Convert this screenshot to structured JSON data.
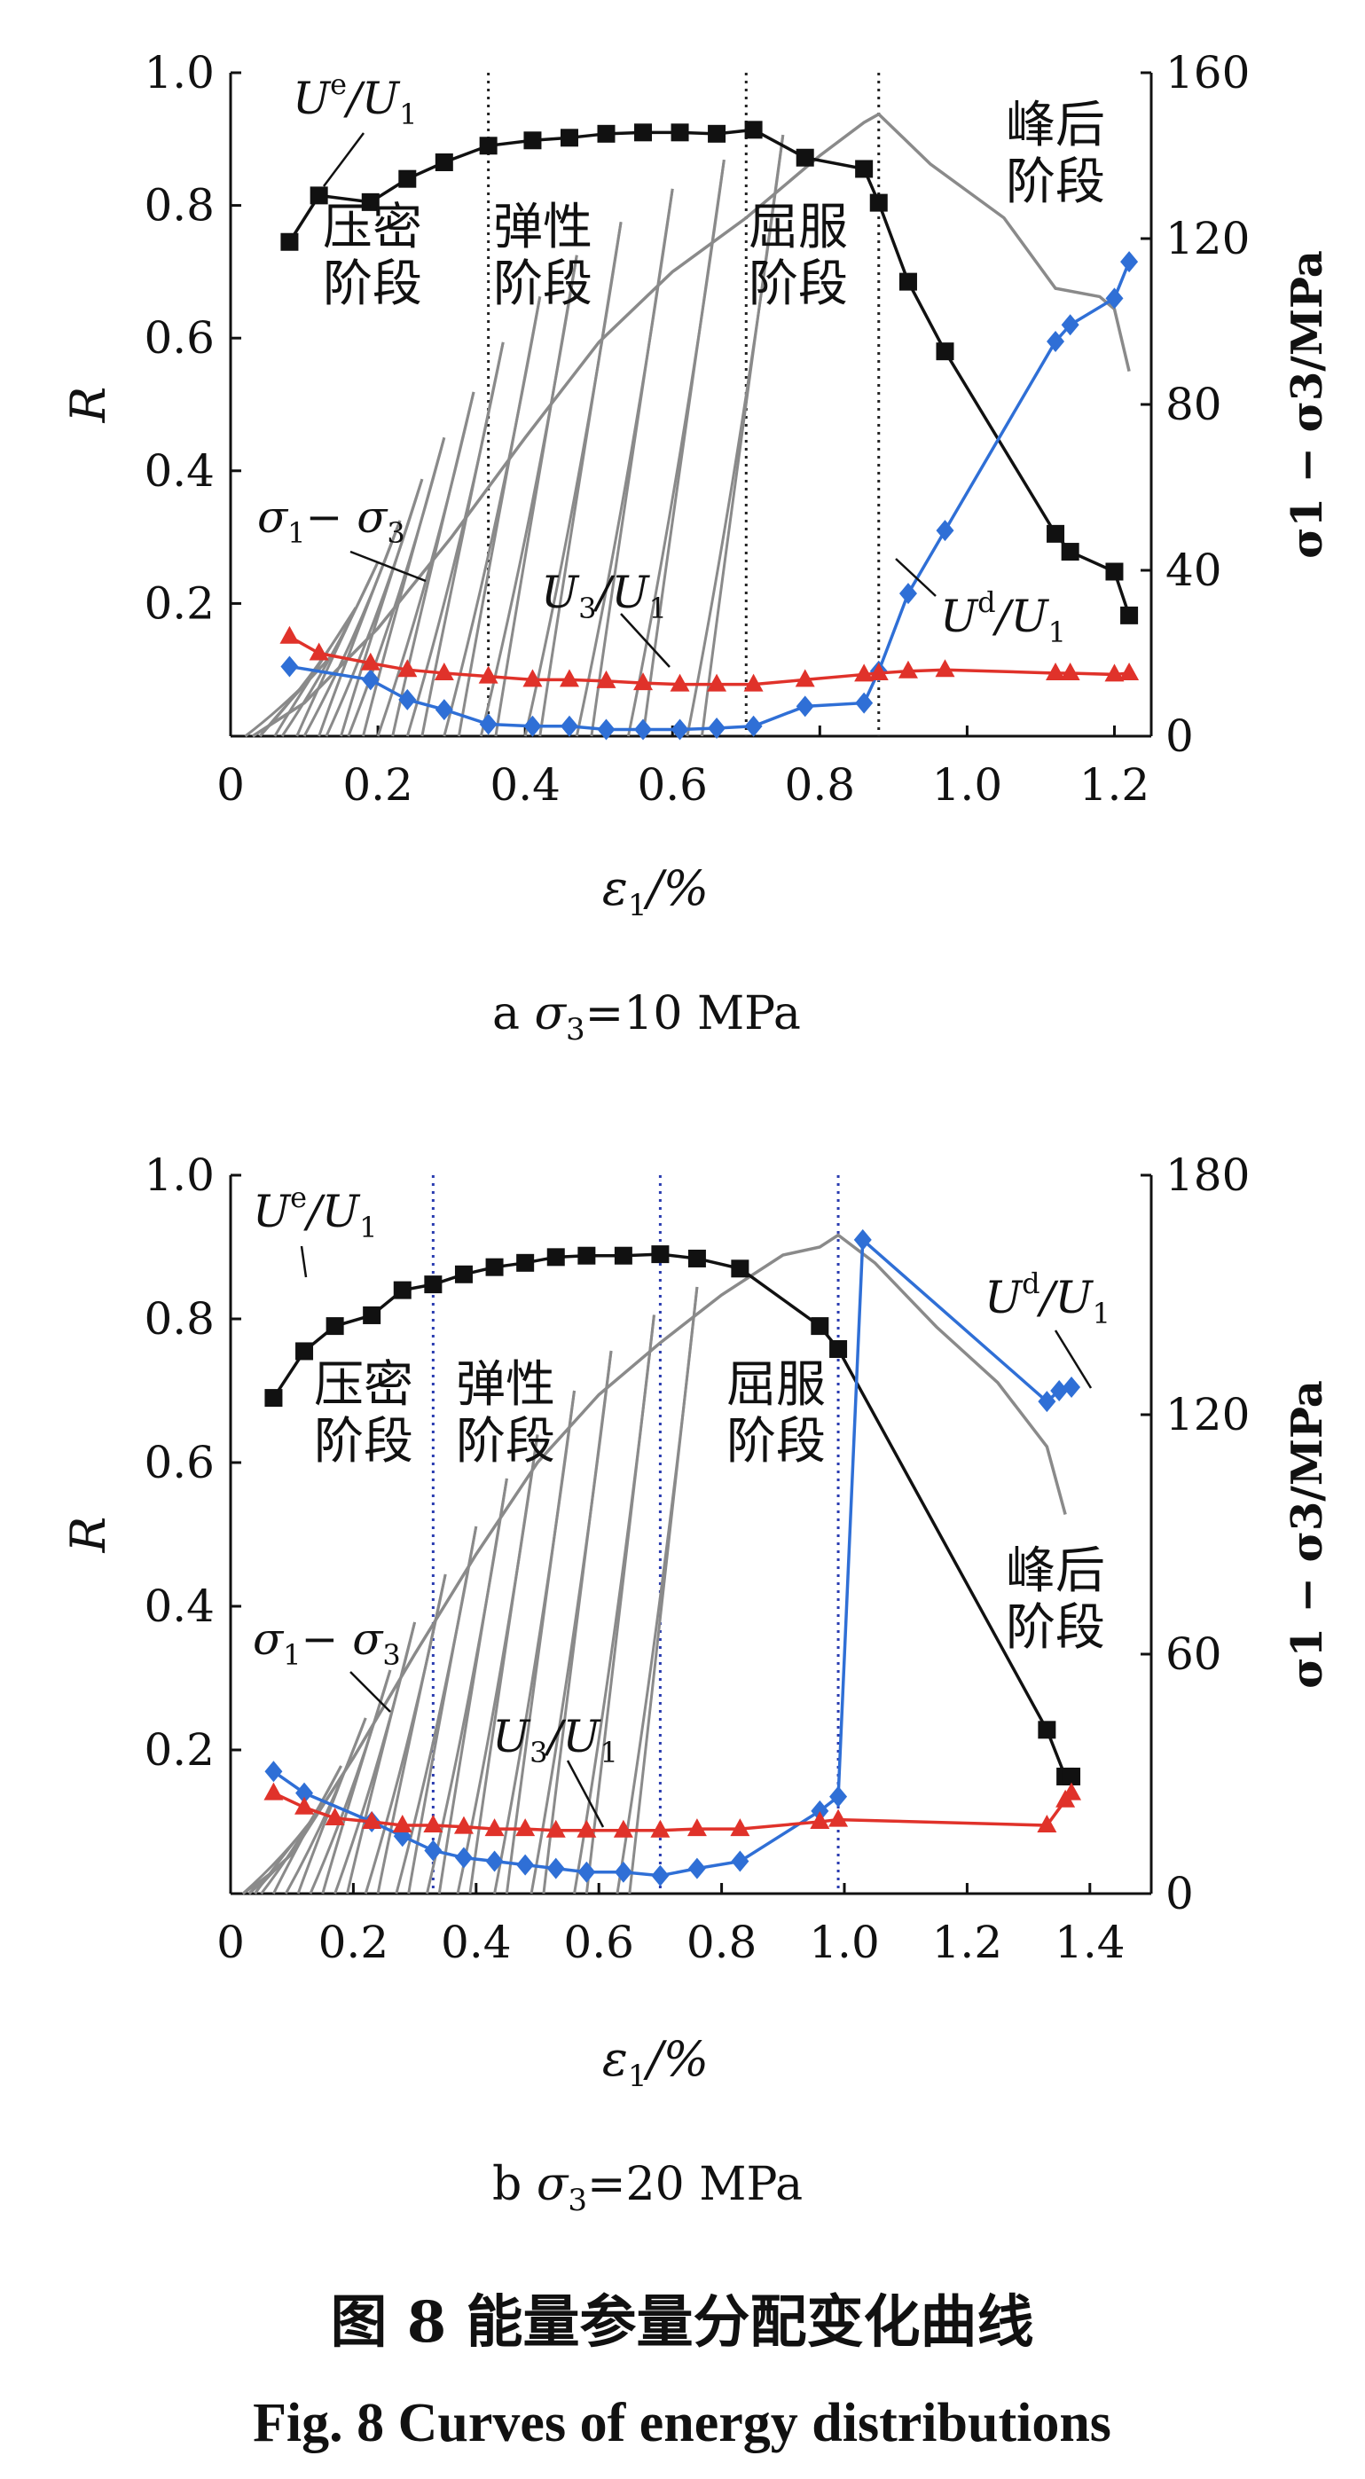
{
  "figure": {
    "caption_cn": "图 8   能量参量分配变化曲线",
    "caption_en": "Fig. 8   Curves of energy distributions"
  },
  "colors": {
    "ue": "#111111",
    "ud": "#2f6fd6",
    "u3": "#e0322a",
    "stress": "#8a8a8a",
    "divider_a": "#222222",
    "divider_b": "#2a3cb0"
  },
  "chart_data": [
    {
      "type": "line",
      "panel_label": "a",
      "caption_main": "σ",
      "caption_sub": "3",
      "caption_tail": "=10 MPa",
      "xlabel_main": "ε",
      "xlabel_sub": "1",
      "xlabel_tail": "/%",
      "ylabel": "R",
      "y2label": "σ1 − σ3/MPa",
      "xlim": [
        0,
        1.25
      ],
      "ylim": [
        0,
        1.0
      ],
      "y2lim": [
        0,
        160
      ],
      "xticks": [
        "0",
        "0.2",
        "0.4",
        "0.6",
        "0.8",
        "1.0",
        "1.2"
      ],
      "yticks": [
        "0.2",
        "0.4",
        "0.6",
        "0.8",
        "1.0"
      ],
      "y2ticks": [
        "0",
        "40",
        "80",
        "120",
        "160"
      ],
      "stage_boundaries": [
        0.35,
        0.7,
        0.88
      ],
      "stages": [
        {
          "lines": [
            "压密",
            "阶段"
          ]
        },
        {
          "lines": [
            "弹性",
            "阶段"
          ]
        },
        {
          "lines": [
            "屈服",
            "阶段"
          ]
        },
        {
          "lines": [
            "峰后",
            "阶段"
          ]
        }
      ],
      "annotations": {
        "ue": {
          "main": "U",
          "sup": "e",
          "tail": "/U",
          "sub": "1"
        },
        "ud": {
          "main": "U",
          "sup": "d",
          "tail": "/U",
          "sub": "1"
        },
        "u3": {
          "main": "U",
          "sub0": "3",
          "tail": "/U",
          "sub": "1"
        },
        "stress": {
          "a": "σ",
          "asub": "1",
          "mid": "− σ",
          "bsub": "3"
        }
      },
      "series": [
        {
          "name": "Ue/U1",
          "marker": "square",
          "x": [
            0.08,
            0.12,
            0.19,
            0.24,
            0.29,
            0.35,
            0.41,
            0.46,
            0.51,
            0.56,
            0.61,
            0.66,
            0.71,
            0.78,
            0.86,
            0.88,
            0.92,
            0.97,
            1.12,
            1.14,
            1.2,
            1.22
          ],
          "y": [
            0.745,
            0.815,
            0.805,
            0.84,
            0.865,
            0.89,
            0.898,
            0.902,
            0.908,
            0.91,
            0.91,
            0.908,
            0.914,
            0.872,
            0.855,
            0.804,
            0.685,
            0.58,
            0.305,
            0.278,
            0.248,
            0.182
          ]
        },
        {
          "name": "Ud/U1",
          "marker": "diamond",
          "x": [
            0.08,
            0.19,
            0.24,
            0.29,
            0.35,
            0.41,
            0.46,
            0.51,
            0.56,
            0.61,
            0.66,
            0.71,
            0.78,
            0.86,
            0.88,
            0.92,
            0.97,
            1.12,
            1.14,
            1.2,
            1.22
          ],
          "y": [
            0.105,
            0.085,
            0.055,
            0.04,
            0.018,
            0.015,
            0.015,
            0.01,
            0.01,
            0.01,
            0.012,
            0.015,
            0.045,
            0.05,
            0.098,
            0.215,
            0.31,
            0.595,
            0.62,
            0.66,
            0.715
          ]
        },
        {
          "name": "U3/U1",
          "marker": "triangle",
          "x": [
            0.08,
            0.12,
            0.19,
            0.24,
            0.29,
            0.35,
            0.41,
            0.46,
            0.51,
            0.56,
            0.61,
            0.66,
            0.71,
            0.78,
            0.86,
            0.88,
            0.92,
            0.97,
            1.12,
            1.14,
            1.2,
            1.22
          ],
          "y": [
            0.15,
            0.125,
            0.11,
            0.1,
            0.095,
            0.09,
            0.085,
            0.085,
            0.083,
            0.08,
            0.078,
            0.078,
            0.078,
            0.085,
            0.093,
            0.095,
            0.098,
            0.1,
            0.095,
            0.095,
            0.093,
            0.095
          ]
        }
      ],
      "stress_curve": {
        "peak": [
          0.88,
          150
        ],
        "cycles": [
          [
            0.14,
            20
          ],
          [
            0.17,
            31
          ],
          [
            0.2,
            42
          ],
          [
            0.23,
            52
          ],
          [
            0.26,
            62
          ],
          [
            0.29,
            72
          ],
          [
            0.33,
            83
          ],
          [
            0.37,
            95
          ],
          [
            0.42,
            106
          ],
          [
            0.47,
            116
          ],
          [
            0.53,
            124
          ],
          [
            0.6,
            132
          ],
          [
            0.67,
            139
          ],
          [
            0.75,
            145
          ]
        ],
        "envelope": [
          [
            0.03,
            0
          ],
          [
            0.1,
            8
          ],
          [
            0.2,
            26
          ],
          [
            0.3,
            48
          ],
          [
            0.4,
            72
          ],
          [
            0.5,
            95
          ],
          [
            0.6,
            112
          ],
          [
            0.7,
            125
          ],
          [
            0.8,
            140
          ],
          [
            0.86,
            148
          ],
          [
            0.88,
            150
          ],
          [
            0.95,
            138
          ],
          [
            1.05,
            125
          ],
          [
            1.12,
            108
          ],
          [
            1.18,
            106
          ],
          [
            1.2,
            103
          ],
          [
            1.22,
            88
          ]
        ]
      }
    },
    {
      "type": "line",
      "panel_label": "b",
      "caption_main": "σ",
      "caption_sub": "3",
      "caption_tail": "=20 MPa",
      "xlabel_main": "ε",
      "xlabel_sub": "1",
      "xlabel_tail": "/%",
      "ylabel": "R",
      "y2label": "σ1 − σ3/MPa",
      "xlim": [
        0,
        1.5
      ],
      "ylim": [
        0,
        1.0
      ],
      "y2lim": [
        0,
        180
      ],
      "xticks": [
        "0",
        "0.2",
        "0.4",
        "0.6",
        "0.8",
        "1.0",
        "1.2",
        "1.4"
      ],
      "yticks": [
        "0.2",
        "0.4",
        "0.6",
        "0.8",
        "1.0"
      ],
      "y2ticks": [
        "0",
        "60",
        "120",
        "180"
      ],
      "stage_boundaries": [
        0.33,
        0.7,
        0.99
      ],
      "stages": [
        {
          "lines": [
            "压密",
            "阶段"
          ]
        },
        {
          "lines": [
            "弹性",
            "阶段"
          ]
        },
        {
          "lines": [
            "屈服",
            "阶段"
          ]
        },
        {
          "lines": [
            "峰后",
            "阶段"
          ]
        }
      ],
      "annotations": {
        "ue": {
          "main": "U",
          "sup": "e",
          "tail": "/U",
          "sub": "1"
        },
        "ud": {
          "main": "U",
          "sup": "d",
          "tail": "/U",
          "sub": "1"
        },
        "u3": {
          "main": "U",
          "sub0": "3",
          "tail": "/U",
          "sub": "1"
        },
        "stress": {
          "a": "σ",
          "asub": "1",
          "mid": "− σ",
          "bsub": "3"
        }
      },
      "series": [
        {
          "name": "Ue/U1",
          "marker": "square",
          "x": [
            0.07,
            0.12,
            0.17,
            0.23,
            0.28,
            0.33,
            0.38,
            0.43,
            0.48,
            0.53,
            0.58,
            0.64,
            0.7,
            0.76,
            0.83,
            0.96,
            0.99,
            1.33,
            1.36,
            1.37
          ],
          "y": [
            0.69,
            0.755,
            0.79,
            0.805,
            0.84,
            0.848,
            0.862,
            0.872,
            0.878,
            0.886,
            0.888,
            0.888,
            0.89,
            0.884,
            0.87,
            0.79,
            0.758,
            0.228,
            0.163,
            0.163
          ]
        },
        {
          "name": "Ud/U1",
          "marker": "diamond",
          "x": [
            0.07,
            0.12,
            0.23,
            0.28,
            0.33,
            0.38,
            0.43,
            0.48,
            0.53,
            0.58,
            0.64,
            0.7,
            0.76,
            0.83,
            0.96,
            0.99,
            1.03,
            1.33,
            1.35,
            1.37
          ],
          "y": [
            0.17,
            0.14,
            0.1,
            0.08,
            0.06,
            0.05,
            0.045,
            0.04,
            0.035,
            0.03,
            0.03,
            0.025,
            0.035,
            0.045,
            0.115,
            0.135,
            0.91,
            0.685,
            0.7,
            0.705
          ]
        },
        {
          "name": "U3/U1",
          "marker": "triangle",
          "x": [
            0.07,
            0.12,
            0.17,
            0.23,
            0.28,
            0.33,
            0.38,
            0.43,
            0.48,
            0.53,
            0.58,
            0.64,
            0.7,
            0.76,
            0.83,
            0.96,
            0.99,
            1.33,
            1.36,
            1.37
          ],
          "y": [
            0.14,
            0.12,
            0.105,
            0.1,
            0.095,
            0.095,
            0.093,
            0.09,
            0.09,
            0.088,
            0.088,
            0.088,
            0.088,
            0.09,
            0.09,
            0.1,
            0.103,
            0.095,
            0.13,
            0.14
          ]
        }
      ],
      "stress_curve": {
        "peak": [
          0.99,
          165
        ],
        "cycles": [
          [
            0.1,
            10
          ],
          [
            0.14,
            20
          ],
          [
            0.18,
            32
          ],
          [
            0.22,
            44
          ],
          [
            0.26,
            56
          ],
          [
            0.3,
            68
          ],
          [
            0.35,
            80
          ],
          [
            0.4,
            92
          ],
          [
            0.45,
            104
          ],
          [
            0.5,
            115
          ],
          [
            0.56,
            126
          ],
          [
            0.62,
            136
          ],
          [
            0.69,
            145
          ],
          [
            0.76,
            152
          ]
        ],
        "envelope": [
          [
            0.03,
            0
          ],
          [
            0.1,
            10
          ],
          [
            0.2,
            34
          ],
          [
            0.3,
            60
          ],
          [
            0.4,
            85
          ],
          [
            0.5,
            108
          ],
          [
            0.6,
            125
          ],
          [
            0.7,
            138
          ],
          [
            0.8,
            150
          ],
          [
            0.9,
            160
          ],
          [
            0.96,
            162
          ],
          [
            0.99,
            165
          ],
          [
            1.05,
            158
          ],
          [
            1.15,
            142
          ],
          [
            1.25,
            128
          ],
          [
            1.33,
            112
          ],
          [
            1.36,
            95
          ]
        ]
      }
    }
  ]
}
